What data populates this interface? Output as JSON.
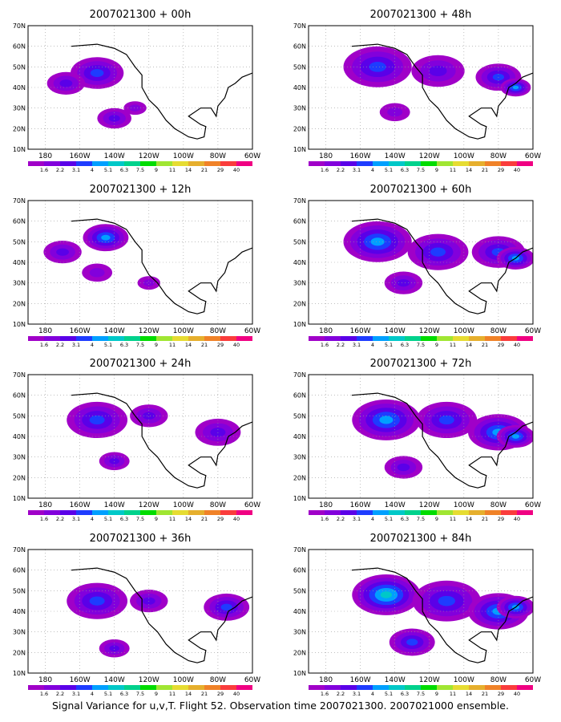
{
  "caption": "Signal Variance for u,v,T. Flight 52. Observation time 2007021300. 2007021000 ensemble.",
  "chart_data": [
    {
      "type": "heatmap",
      "title": "2007021300 + 00h",
      "lead": "00h"
    },
    {
      "type": "heatmap",
      "title": "2007021300 + 48h",
      "lead": "48h"
    },
    {
      "type": "heatmap",
      "title": "2007021300 + 12h",
      "lead": "12h"
    },
    {
      "type": "heatmap",
      "title": "2007021300 + 60h",
      "lead": "60h"
    },
    {
      "type": "heatmap",
      "title": "2007021300 + 24h",
      "lead": "24h"
    },
    {
      "type": "heatmap",
      "title": "2007021300 + 72h",
      "lead": "72h"
    },
    {
      "type": "heatmap",
      "title": "2007021300 + 36h",
      "lead": "36h"
    },
    {
      "type": "heatmap",
      "title": "2007021300 + 84h",
      "lead": "84h"
    }
  ],
  "axes": {
    "x_ticks": [
      "180",
      "160W",
      "140W",
      "120W",
      "100W",
      "80W",
      "60W"
    ],
    "y_ticks": [
      "70N",
      "60N",
      "50N",
      "40N",
      "30N",
      "20N",
      "10N"
    ],
    "xlim_lon_east": [
      -190,
      -60
    ],
    "ylim_lat": [
      10,
      70
    ],
    "grid": true
  },
  "colorbar": {
    "labels": [
      "1.6",
      "2.2",
      "3.1",
      "4",
      "5.1",
      "6.3",
      "7.5",
      "9",
      "11",
      "14",
      "21",
      "29",
      "40"
    ],
    "colors": [
      "#a000c8",
      "#8200dc",
      "#5a00e8",
      "#1e3cff",
      "#00a0ff",
      "#00c8c8",
      "#00d28c",
      "#00dc00",
      "#a0e632",
      "#e6dc32",
      "#e6af2d",
      "#f08228",
      "#fa3c3c",
      "#f00082"
    ]
  }
}
